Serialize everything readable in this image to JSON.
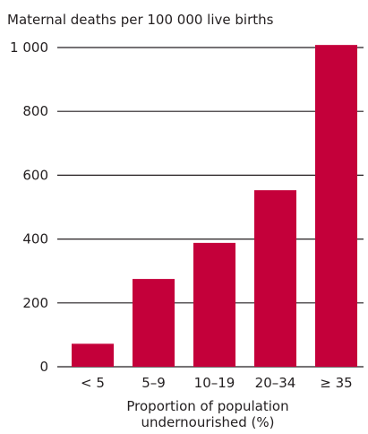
{
  "chart_data": {
    "type": "bar",
    "title": "Maternal deaths per 100 000 live births",
    "xlabel_line1": "Proportion of population",
    "xlabel_line2": "undernourished (%)",
    "categories": [
      "< 5",
      "5–9",
      "10–19",
      "20–34",
      "≥ 35"
    ],
    "values": [
      72,
      275,
      388,
      553,
      1008
    ],
    "ylim": [
      0,
      1000
    ],
    "yticks": [
      0,
      200,
      400,
      600,
      800,
      1000
    ],
    "ytick_labels": [
      "0",
      "200",
      "400",
      "600",
      "800",
      "1 000"
    ],
    "grid": true,
    "bar_color": "#c4003a",
    "grid_color": "#231f20"
  }
}
